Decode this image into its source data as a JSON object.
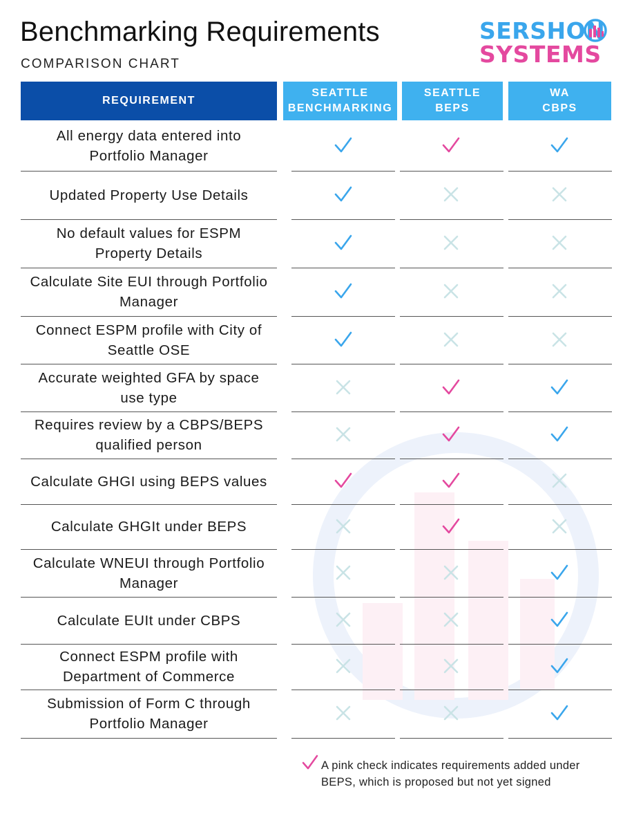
{
  "header": {
    "title": "Benchmarking Requirements",
    "subtitle": "COMPARISON CHART",
    "logo_line1": "SERSHON",
    "logo_line2": "SYSTEMS"
  },
  "colors": {
    "header_dark": "#0b4ea8",
    "header_light": "#3fb1ef",
    "blue_check": "#3aa6ec",
    "pink_check": "#e4499f",
    "cross": "#c9e3e6"
  },
  "table": {
    "columns": [
      {
        "line1": "REQUIREMENT",
        "line2": ""
      },
      {
        "line1": "SEATTLE",
        "line2": "BENCHMARKING"
      },
      {
        "line1": "SEATTLE",
        "line2": "BEPS"
      },
      {
        "line1": "WA",
        "line2": "CBPS"
      }
    ],
    "rows": [
      {
        "line1": "All energy data entered into",
        "line2": "Portfolio Manager",
        "marks": [
          "blue",
          "pink",
          "blue"
        ]
      },
      {
        "line1": "Updated Property Use Details",
        "line2": "",
        "marks": [
          "blue",
          "x",
          "x"
        ]
      },
      {
        "line1": "No default values for ESPM",
        "line2": "Property Details",
        "marks": [
          "blue",
          "x",
          "x"
        ]
      },
      {
        "line1": "Calculate Site EUI through Portfolio",
        "line2": "Manager",
        "marks": [
          "blue",
          "x",
          "x"
        ]
      },
      {
        "line1": "Connect ESPM profile with City of",
        "line2": "Seattle OSE",
        "marks": [
          "blue",
          "x",
          "x"
        ]
      },
      {
        "line1": "Accurate weighted GFA by space",
        "line2": "use type",
        "marks": [
          "x",
          "pink",
          "blue"
        ]
      },
      {
        "line1": "Requires review by a CBPS/BEPS",
        "line2": "qualified person",
        "marks": [
          "x",
          "pink",
          "blue"
        ]
      },
      {
        "line1": "Calculate GHGI using BEPS values",
        "line2": "",
        "marks": [
          "pink",
          "pink",
          "x"
        ]
      },
      {
        "line1": "Calculate GHGIt under BEPS",
        "line2": "",
        "marks": [
          "x",
          "pink",
          "x"
        ]
      },
      {
        "line1": "Calculate WNEUI through Portfolio",
        "line2": "Manager",
        "marks": [
          "x",
          "x",
          "blue"
        ]
      },
      {
        "line1": "Calculate EUIt under CBPS",
        "line2": "",
        "marks": [
          "x",
          "x",
          "blue"
        ]
      },
      {
        "line1": "Connect ESPM profile with",
        "line2": "Department of Commerce",
        "marks": [
          "x",
          "x",
          "blue"
        ]
      },
      {
        "line1": "Submission of Form C through",
        "line2": "Portfolio Manager",
        "marks": [
          "x",
          "x",
          "blue"
        ]
      }
    ]
  },
  "footer": {
    "note_line1": "A pink check indicates requirements added under",
    "note_line2": "BEPS, which is proposed but not yet signed"
  }
}
